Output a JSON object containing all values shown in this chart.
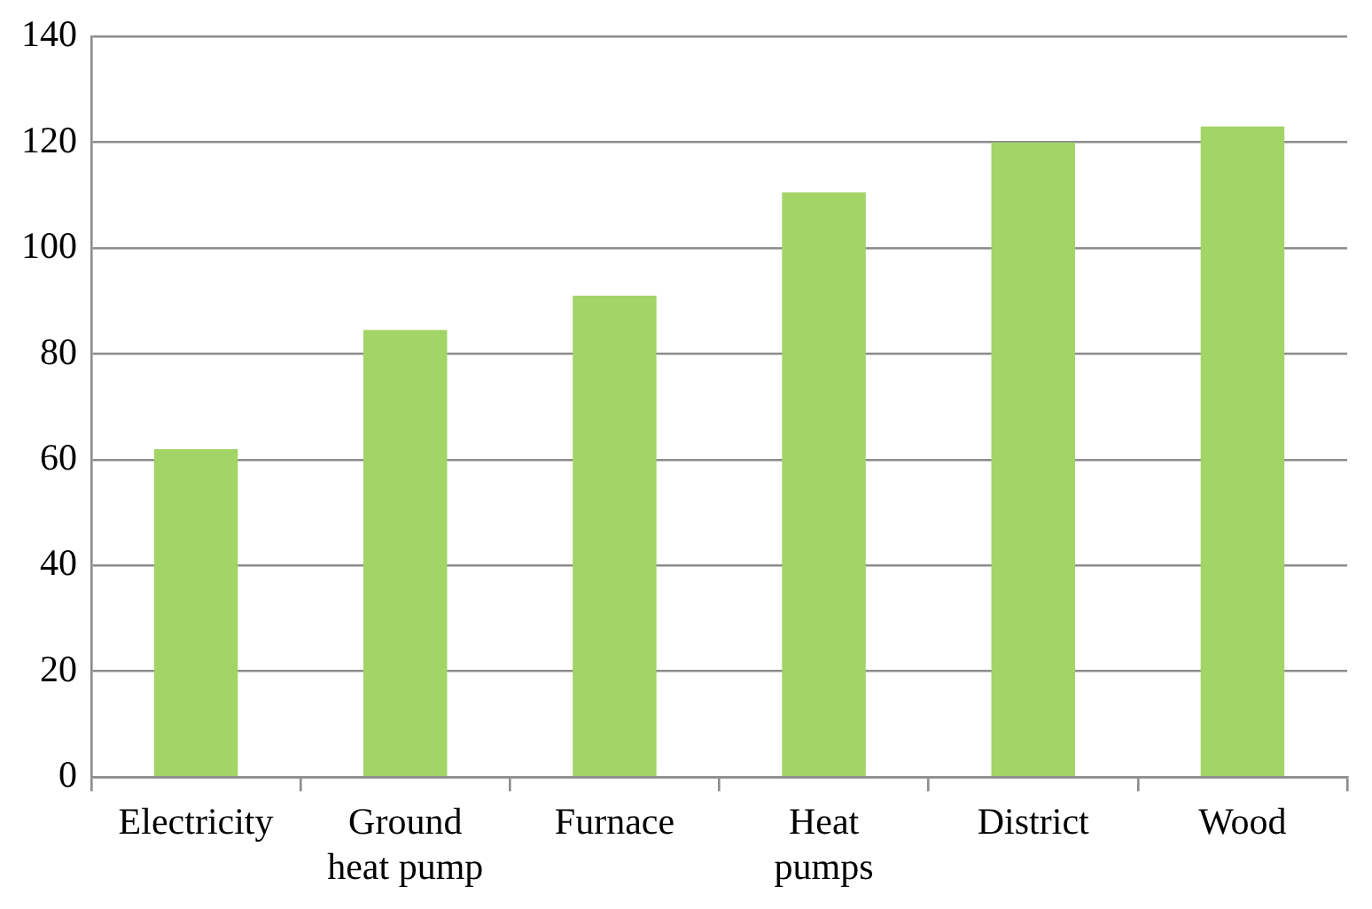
{
  "chart_data": {
    "type": "bar",
    "categories": [
      "Electricity",
      "Ground heat pump",
      "Furnace",
      "Heat pumps",
      "District",
      "Wood"
    ],
    "values": [
      62,
      84.5,
      91,
      110.5,
      120,
      123
    ],
    "color": "#a2d466",
    "ylim": [
      0,
      140
    ],
    "yticks": [
      0,
      20,
      40,
      60,
      80,
      100,
      120,
      140
    ],
    "grid": "y"
  }
}
